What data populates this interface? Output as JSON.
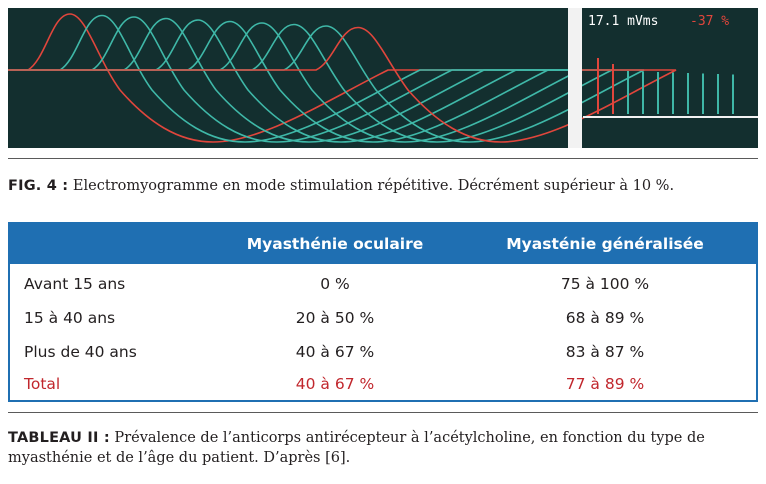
{
  "figure": {
    "readout_value": "17.1 mVms",
    "readout_decrement": "-37 %",
    "colors": {
      "background": "#132f2f",
      "trace_teal": "#3fb8a8",
      "trace_red": "#e0463c",
      "panel_white": "#f2f2f2"
    }
  },
  "fig_caption": {
    "label": "FIG. 4 :",
    "text": " Electromyogramme en mode stimulation répétitive. Décrément supérieur à 10 %."
  },
  "table": {
    "headers": [
      "",
      "Myasthénie oculaire",
      "Myasténie généralisée"
    ],
    "rows": [
      [
        "Avant 15 ans",
        "0 %",
        "75 à 100 %"
      ],
      [
        "15 à 40 ans",
        "20 à 50 %",
        "68 à 89 %"
      ],
      [
        "Plus de 40 ans",
        "40 à 67 %",
        "83 à 87 %"
      ]
    ],
    "total": [
      "Total",
      "40 à 67 %",
      "77 à 89 %"
    ],
    "colors": {
      "header_bg": "#1f6fb2",
      "total_text": "#c1272d"
    }
  },
  "table_caption": {
    "label": "TABLEAU II :",
    "text": " Prévalence de l’anticorps antirécepteur à l’acétylcholine, en fonction du type de myasthénie et de l’âge du patient. D’après [6]."
  }
}
